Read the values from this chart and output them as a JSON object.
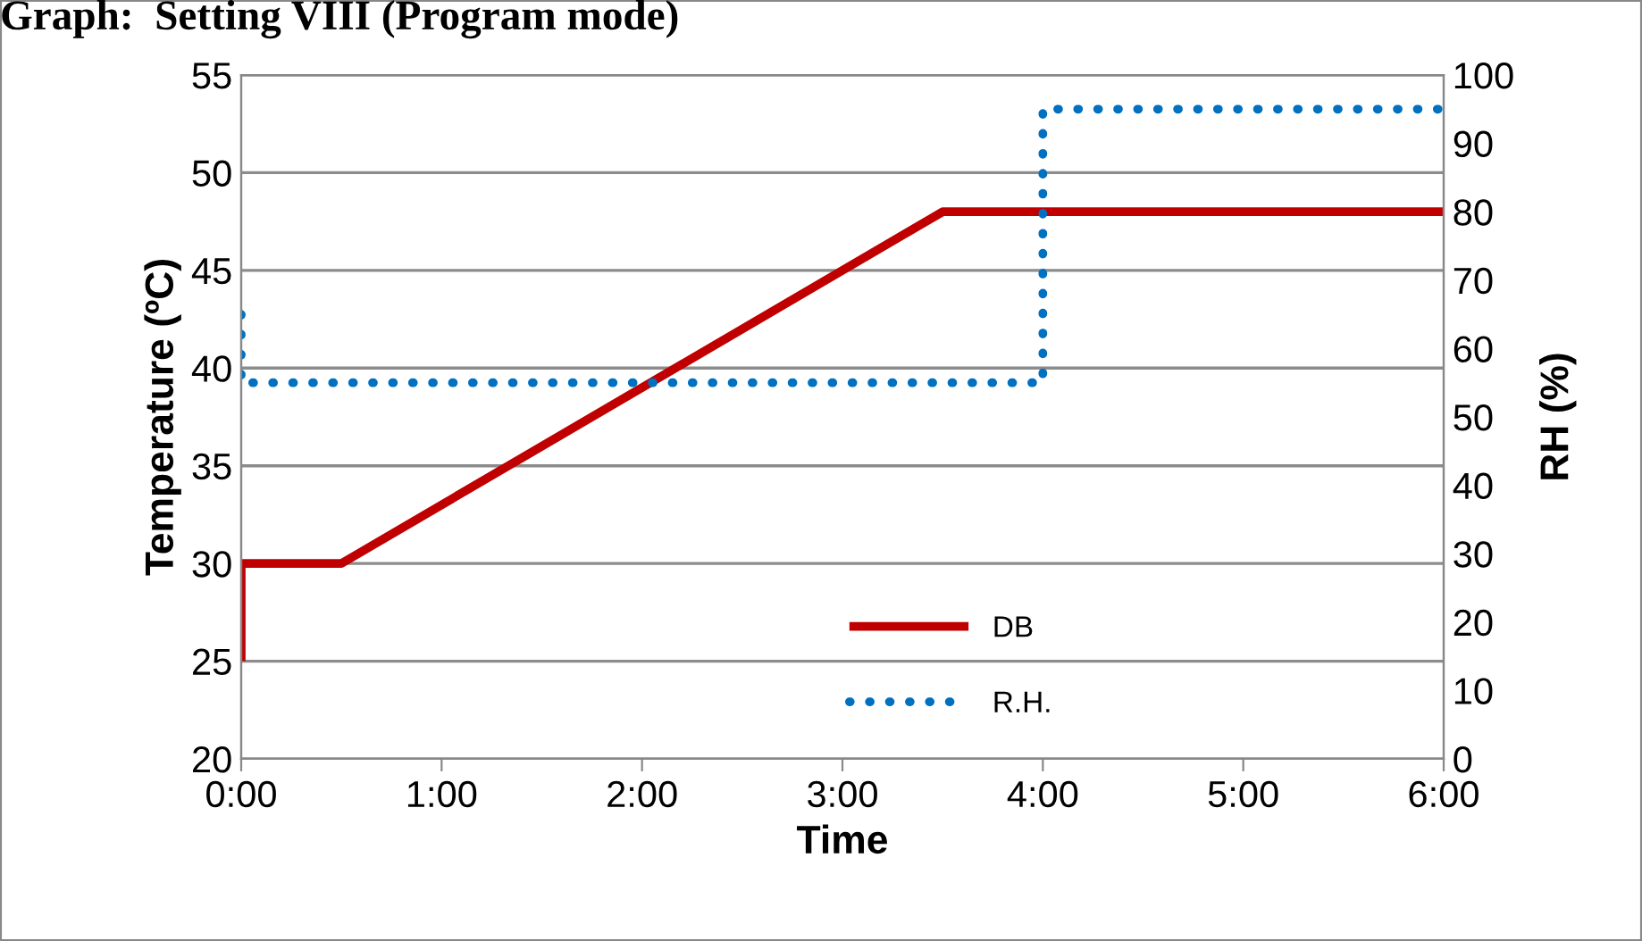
{
  "chart_data": {
    "type": "line",
    "title": "Graph:  Setting VIII (Program mode)",
    "xlabel": "Time",
    "ylabel": "Temperature (ºC)",
    "y2label": "RH (%)",
    "series": [
      {
        "name": "DB",
        "color": "#c00000",
        "line_style": "solid",
        "x": [
          0,
          0,
          0.5,
          3.5,
          6
        ],
        "values": [
          25,
          30,
          30,
          48,
          48
        ]
      },
      {
        "name": "R.H.",
        "color": "#0070c0",
        "line_style": "dotted",
        "axis": "y2",
        "x": [
          0,
          0,
          4,
          4,
          6
        ],
        "values": [
          65,
          55,
          55,
          95,
          95
        ]
      }
    ],
    "xlim": [
      0,
      6
    ],
    "xticks": [
      {
        "value": 0,
        "label": "0:00"
      },
      {
        "value": 1,
        "label": "1:00"
      },
      {
        "value": 2,
        "label": "2:00"
      },
      {
        "value": 3,
        "label": "3:00"
      },
      {
        "value": 4,
        "label": "4:00"
      },
      {
        "value": 5,
        "label": "5:00"
      },
      {
        "value": 6,
        "label": "6:00"
      }
    ],
    "ylim": [
      20,
      55
    ],
    "yticks": [
      20,
      25,
      30,
      35,
      40,
      45,
      50,
      55
    ],
    "y2lim": [
      0,
      100
    ],
    "y2ticks": [
      0,
      10,
      20,
      30,
      40,
      50,
      60,
      70,
      80,
      90,
      100
    ],
    "grid": "y",
    "legend": "bottom",
    "marker": "none"
  }
}
